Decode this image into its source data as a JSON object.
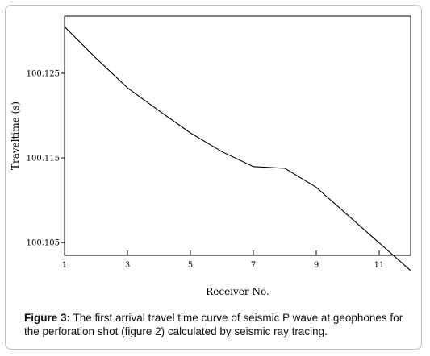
{
  "chart_data": {
    "type": "line",
    "title": "",
    "xlabel": "Receiver No.",
    "ylabel": "Traveltime (s)",
    "xlim": [
      1,
      12
    ],
    "ylim": [
      100.1035,
      100.13175
    ],
    "xticks": [
      1,
      3,
      5,
      7,
      9,
      11
    ],
    "yticks": [
      100.105,
      100.115,
      100.125
    ],
    "ytick_labels": [
      "100.105",
      "100.115",
      "100.125"
    ],
    "grid": false,
    "legend": "none",
    "line_color": "#000000",
    "series": [
      {
        "x": [
          1,
          2,
          3,
          4,
          5,
          6,
          7,
          8,
          9,
          10,
          11,
          12
        ],
        "y": [
          100.1305,
          100.12678,
          100.12328,
          100.12058,
          100.11796,
          100.11574,
          100.11398,
          100.11378,
          100.11153,
          100.10825,
          100.10497,
          100.1017
        ]
      }
    ]
  },
  "caption": {
    "label": "Figure 3:",
    "text": " The first arrival travel time curve of seismic P wave at geophones for the perforation shot (figure 2) calculated by seismic ray tracing."
  }
}
